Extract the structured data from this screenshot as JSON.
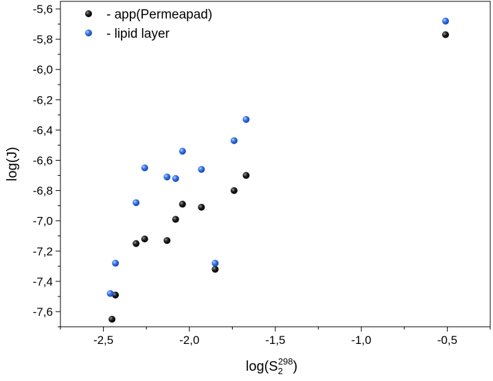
{
  "chart_data": {
    "type": "scatter",
    "xlabel_main": "log(S",
    "xlabel_sub": "2",
    "xlabel_sup": "298",
    "xlabel_close": ")",
    "ylabel": "log(J)",
    "xlim": [
      -2.75,
      -0.25
    ],
    "ylim": [
      -7.7,
      -5.55
    ],
    "x_ticks": [
      -2.5,
      -2.0,
      -1.5,
      -1.0,
      -0.5
    ],
    "x_tick_labels": [
      "-2,5",
      "-2,0",
      "-1,5",
      "-1,0",
      "-0,5"
    ],
    "y_ticks": [
      -7.6,
      -7.4,
      -7.2,
      -7.0,
      -6.8,
      -6.6,
      -6.4,
      -6.2,
      -6.0,
      -5.8,
      -5.6
    ],
    "y_tick_labels": [
      "-7,6",
      "-7,4",
      "-7,2",
      "-7,0",
      "-6,8",
      "-6,6",
      "-6,4",
      "-6,2",
      "-6,0",
      "-5,8",
      "-5,6"
    ],
    "grid": false,
    "legend_position": "top-left",
    "series": [
      {
        "name": "- app(Permeapad)",
        "color": "#111111",
        "x": [
          -2.45,
          -2.43,
          -2.31,
          -2.26,
          -2.13,
          -2.08,
          -2.04,
          -1.93,
          -1.85,
          -1.74,
          -1.67,
          -0.51
        ],
        "y": [
          -7.65,
          -7.49,
          -7.15,
          -7.12,
          -7.13,
          -6.99,
          -6.89,
          -6.91,
          -7.32,
          -6.8,
          -6.7,
          -5.77
        ]
      },
      {
        "name": "- lipid layer",
        "color": "#2f6fe0",
        "x": [
          -2.46,
          -2.43,
          -2.31,
          -2.26,
          -2.13,
          -2.08,
          -2.04,
          -1.93,
          -1.85,
          -1.74,
          -1.67,
          -0.51
        ],
        "y": [
          -7.48,
          -7.28,
          -6.88,
          -6.65,
          -6.71,
          -6.72,
          -6.54,
          -6.66,
          -7.28,
          -6.47,
          -6.33,
          -5.68
        ]
      }
    ]
  }
}
